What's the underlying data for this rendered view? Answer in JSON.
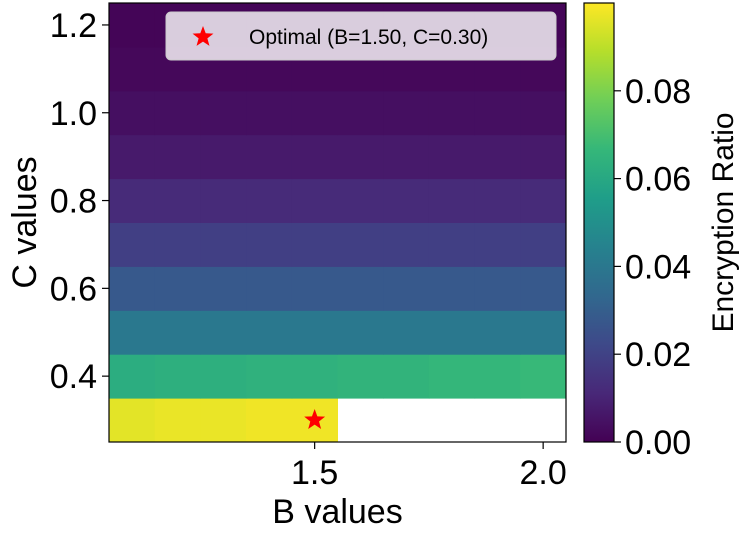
{
  "chart_data": {
    "type": "heatmap",
    "title": "",
    "xlabel": "B values",
    "ylabel": "C values",
    "x_values": [
      1.1,
      1.2,
      1.3,
      1.4,
      1.5,
      1.6,
      1.7,
      1.8,
      1.9,
      2.0
    ],
    "y_values": [
      0.3,
      0.4,
      0.5,
      0.6,
      0.7,
      0.8,
      0.9,
      1.0,
      1.1,
      1.2
    ],
    "xlim": [
      1.05,
      2.05
    ],
    "ylim": [
      0.25,
      1.25
    ],
    "x_ticks": [
      {
        "value": 1.5,
        "label": "1.5"
      },
      {
        "value": 2.0,
        "label": "2.0"
      }
    ],
    "y_ticks": [
      {
        "value": 0.4,
        "label": "0.4"
      },
      {
        "value": 0.6,
        "label": "0.6"
      },
      {
        "value": 0.8,
        "label": "0.8"
      },
      {
        "value": 1.0,
        "label": "1.0"
      },
      {
        "value": 1.2,
        "label": "1.2"
      }
    ],
    "rows": [
      {
        "c": 0.3,
        "values": [
          0.096,
          0.097,
          0.097,
          0.098,
          0.098,
          null,
          null,
          null,
          null,
          null
        ]
      },
      {
        "c": 0.4,
        "values": [
          0.062,
          0.063,
          0.063,
          0.064,
          0.064,
          0.065,
          0.065,
          0.066,
          0.066,
          0.067
        ]
      },
      {
        "c": 0.5,
        "values": [
          0.04,
          0.04,
          0.04,
          0.04,
          0.04,
          0.04,
          0.04,
          0.04,
          0.04,
          0.04
        ]
      },
      {
        "c": 0.6,
        "values": [
          0.028,
          0.028,
          0.028,
          0.028,
          0.028,
          0.028,
          0.028,
          0.028,
          0.028,
          0.028
        ]
      },
      {
        "c": 0.7,
        "values": [
          0.019,
          0.019,
          0.019,
          0.019,
          0.019,
          0.019,
          0.019,
          0.019,
          0.019,
          0.019
        ]
      },
      {
        "c": 0.8,
        "values": [
          0.012,
          0.012,
          0.012,
          0.012,
          0.012,
          0.012,
          0.012,
          0.012,
          0.012,
          0.012
        ]
      },
      {
        "c": 0.9,
        "values": [
          0.007,
          0.007,
          0.007,
          0.007,
          0.007,
          0.007,
          0.007,
          0.007,
          0.007,
          0.007
        ]
      },
      {
        "c": 1.0,
        "values": [
          0.004,
          0.004,
          0.004,
          0.004,
          0.004,
          0.004,
          0.004,
          0.004,
          0.004,
          0.004
        ]
      },
      {
        "c": 1.1,
        "values": [
          0.002,
          0.002,
          0.002,
          0.002,
          0.002,
          0.002,
          0.002,
          0.002,
          0.002,
          0.002
        ]
      },
      {
        "c": 1.2,
        "values": [
          0.001,
          0.001,
          0.001,
          0.001,
          0.001,
          0.001,
          0.001,
          0.001,
          0.001,
          0.001
        ]
      }
    ],
    "color_scale": {
      "name": "viridis",
      "vmin": 0.0,
      "vmax": 0.1,
      "label": "Encryption Ratio",
      "ticks": [
        {
          "value": 0.0,
          "label": "0.00"
        },
        {
          "value": 0.02,
          "label": "0.02"
        },
        {
          "value": 0.04,
          "label": "0.04"
        },
        {
          "value": 0.06,
          "label": "0.06"
        },
        {
          "value": 0.08,
          "label": "0.08"
        }
      ],
      "stops": [
        "#440154",
        "#482878",
        "#3e4989",
        "#31688e",
        "#26828e",
        "#1f9e89",
        "#35b779",
        "#6ece58",
        "#b5de2b",
        "#fde725"
      ]
    },
    "optimal_point": {
      "b": 1.5,
      "c": 0.3,
      "color": "#ff0000"
    },
    "legend": {
      "position": "top-right",
      "entries": [
        {
          "label": "Optimal (B=1.50, C=0.30)",
          "marker": "star",
          "color": "#ff0000"
        }
      ]
    }
  }
}
